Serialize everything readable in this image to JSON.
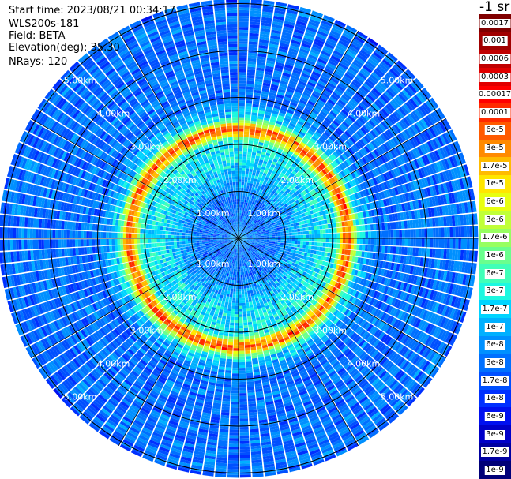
{
  "header": {
    "start_time": "Start time: 2023/08/21 00:34:17",
    "instrument": "WLS200s-181",
    "field": "Field: BETA",
    "elevation": "Elevation(deg): 35.30",
    "nrays": "NRays: 120"
  },
  "colorbar": {
    "unit": "-1 sr",
    "entries": [
      {
        "label": "0.0017",
        "color": "#800000"
      },
      {
        "label": "0.001",
        "color": "#a00000"
      },
      {
        "label": "0.0006",
        "color": "#c00000"
      },
      {
        "label": "0.0003",
        "color": "#e00000"
      },
      {
        "label": "0.00017",
        "color": "#ff0000"
      },
      {
        "label": "0.0001",
        "color": "#ff2a00"
      },
      {
        "label": "6e-5",
        "color": "#ff5a00"
      },
      {
        "label": "3e-5",
        "color": "#ff8a00"
      },
      {
        "label": "1.7e-5",
        "color": "#ffbb00"
      },
      {
        "label": "1e-5",
        "color": "#ffe600"
      },
      {
        "label": "6e-6",
        "color": "#e8ff10"
      },
      {
        "label": "3e-6",
        "color": "#c0ff38"
      },
      {
        "label": "1.7e-6",
        "color": "#97ff60"
      },
      {
        "label": "1e-6",
        "color": "#6aff8d"
      },
      {
        "label": "6e-7",
        "color": "#40ffb8"
      },
      {
        "label": "3e-7",
        "color": "#1cf8e0"
      },
      {
        "label": "1.7e-7",
        "color": "#00d4ff"
      },
      {
        "label": "1e-7",
        "color": "#00b0ff"
      },
      {
        "label": "6e-8",
        "color": "#0090ff"
      },
      {
        "label": "3e-8",
        "color": "#0070ff"
      },
      {
        "label": "1.7e-8",
        "color": "#0050ff"
      },
      {
        "label": "1e-8",
        "color": "#0030ff"
      },
      {
        "label": "6e-9",
        "color": "#0010f0"
      },
      {
        "label": "3e-9",
        "color": "#0000c8"
      },
      {
        "label": "1.7e-9",
        "color": "#0000a0"
      },
      {
        "label": "1e-9",
        "color": "#000078"
      }
    ]
  },
  "chart_data": {
    "type": "heatmap",
    "projection": "polar PPI",
    "field": "BETA",
    "rays": 120,
    "range_rings_km": [
      1,
      2,
      3,
      4,
      5
    ],
    "ring_labels": [
      "1.00km",
      "2.00km",
      "3.00km",
      "4.00km",
      "5.00km"
    ],
    "spokes_deg": [
      0,
      30,
      60,
      90,
      120,
      150,
      180,
      210,
      240,
      270,
      300,
      330
    ],
    "profile": {
      "range_km": [
        0.0,
        0.3,
        0.8,
        1.5,
        2.1,
        2.2,
        2.35,
        2.45,
        2.6,
        3.0,
        4.0,
        5.0,
        5.1
      ],
      "value": [
        1e-07,
        3e-08,
        3e-08,
        1.7e-07,
        3e-07,
        1e-05,
        0.0001,
        3e-06,
        1.7e-07,
        3e-08,
        3e-08,
        3e-08,
        1.7e-08
      ]
    }
  }
}
